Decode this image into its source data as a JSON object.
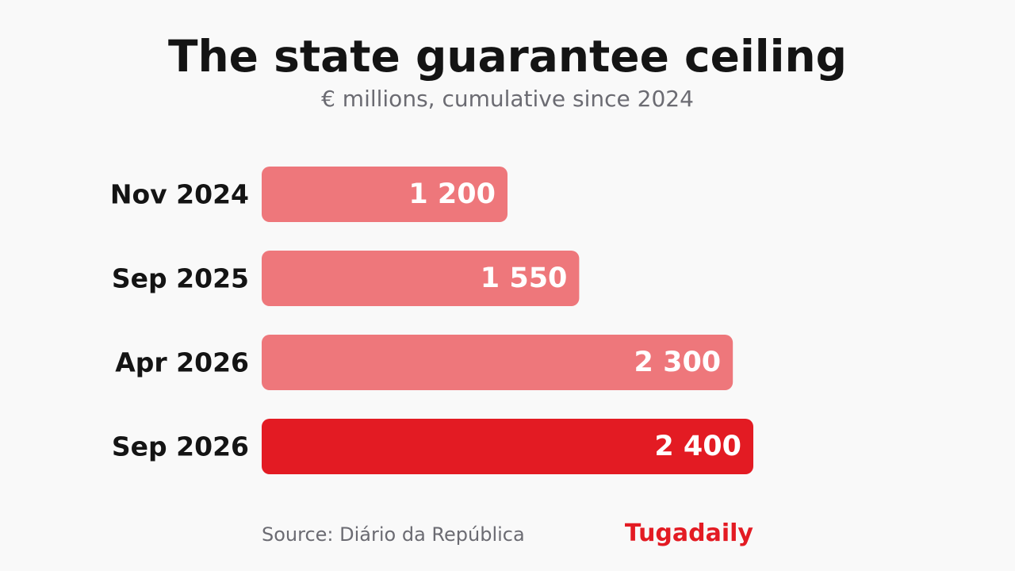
{
  "header": {
    "title": "The state guarantee ceiling",
    "subtitle": "€ millions, cumulative since 2024"
  },
  "footer": {
    "source": "Source: Diário da República",
    "brand": "Tugadaily"
  },
  "colors": {
    "bar": "#ee777b",
    "highlight": "#e31b23",
    "background": "#f9f9f9",
    "brand": "#e31b23"
  },
  "chart_data": {
    "type": "bar",
    "orientation": "horizontal",
    "categories": [
      "Nov 2024",
      "Sep 2025",
      "Apr 2026",
      "Sep 2026"
    ],
    "values": [
      1200,
      1550,
      2300,
      2400
    ],
    "value_labels": [
      "1 200",
      "1 550",
      "2 300",
      "2 400"
    ],
    "highlight_index": 3,
    "xlim": [
      0,
      2400
    ],
    "grid": false,
    "legend": "none"
  }
}
